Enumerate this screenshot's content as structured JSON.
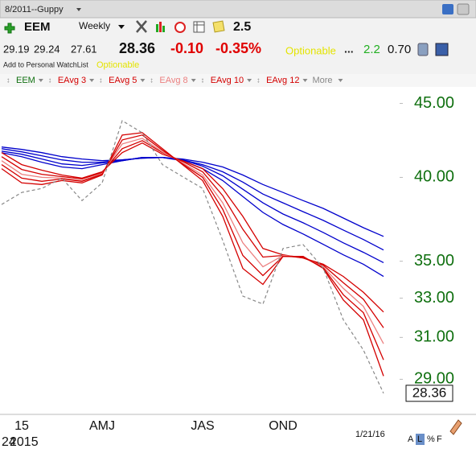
{
  "header": {
    "layout_name": "8/2011--Guppy",
    "symbol": "EEM",
    "period": "Weekly",
    "zoom": "2.5",
    "open": "29.19",
    "high": "29.24",
    "low": "27.61",
    "last": "28.36",
    "change": "-0.10",
    "change_pct": "-0.35%",
    "optionable": "Optionable",
    "ellipsis": "...",
    "rank": "2.2",
    "ratio": "0.70",
    "watchlist": "Add to Personal WatchList",
    "optionable_tag": "Optionable",
    "more": "More"
  },
  "footer": {
    "year_label": "2015",
    "day_label": "24",
    "date": "1/21/16",
    "buttons": [
      "A",
      "L",
      "%",
      "F"
    ]
  },
  "chart_data": {
    "type": "line",
    "log_scale": true,
    "categories": [
      null,
      "15",
      null,
      null,
      null,
      "AMJ",
      null,
      null,
      null,
      null,
      "JAS",
      null,
      null,
      null,
      "OND",
      null,
      null,
      null,
      null,
      null
    ],
    "ylim": [
      27.6,
      46.2
    ],
    "yticks": [
      {
        "value": 45,
        "label": "45.00"
      },
      {
        "value": 40,
        "label": "40.00"
      },
      {
        "value": 35,
        "label": "35.00"
      },
      {
        "value": 33,
        "label": "33.00"
      },
      {
        "value": 31,
        "label": "31.00"
      },
      {
        "value": 29,
        "label": "29.00"
      }
    ],
    "series": [
      {
        "name": "EEM",
        "color": "#888888",
        "dashed": true,
        "values": [
          38.31,
          39.05,
          39.3,
          39.95,
          38.55,
          39.65,
          43.78,
          42.94,
          40.82,
          40.05,
          39.3,
          36.18,
          33.11,
          32.69,
          35.72,
          35.94,
          34.62,
          31.88,
          30.38,
          28.36
        ]
      },
      {
        "name": "EAvg 3",
        "color": "#d40000",
        "values": [
          40.56,
          39.65,
          39.55,
          39.8,
          39.65,
          40.15,
          42.79,
          42.95,
          41.87,
          40.82,
          39.8,
          37.59,
          34.6,
          33.73,
          35.27,
          35.27,
          34.6,
          32.9,
          31.88,
          29.15
        ]
      },
      {
        "name": "EAvg 5",
        "color": "#d40000",
        "values": [
          40.82,
          39.95,
          39.75,
          39.9,
          39.75,
          40.2,
          42.46,
          42.79,
          41.77,
          40.87,
          40.0,
          38.02,
          35.32,
          34.21,
          35.27,
          35.23,
          34.64,
          33.18,
          32.24,
          29.91
        ]
      },
      {
        "name": "EAvg 8",
        "color": "#ec8080",
        "values": [
          41.08,
          40.2,
          40.0,
          39.95,
          39.8,
          40.25,
          42.19,
          42.57,
          41.66,
          40.93,
          40.15,
          38.41,
          36.04,
          34.69,
          35.32,
          35.23,
          34.69,
          33.52,
          32.57,
          30.69
        ]
      },
      {
        "name": "EAvg 10",
        "color": "#d40000",
        "values": [
          41.34,
          40.51,
          40.2,
          40.05,
          39.9,
          40.31,
          41.87,
          42.41,
          41.61,
          41.03,
          40.36,
          38.85,
          36.83,
          35.23,
          35.32,
          35.18,
          34.78,
          33.82,
          32.94,
          31.48
        ]
      },
      {
        "name": "EAvg 12",
        "color": "#d40000",
        "values": [
          41.61,
          40.82,
          40.46,
          40.15,
          39.95,
          40.36,
          41.61,
          42.25,
          41.5,
          41.08,
          40.56,
          39.29,
          37.59,
          35.72,
          35.36,
          35.18,
          34.83,
          34.16,
          33.31,
          32.28
        ]
      },
      {
        "color": "#0000cc",
        "values": [
          41.61,
          41.34,
          40.98,
          40.67,
          40.56,
          40.82,
          41.08,
          41.29,
          41.29,
          41.08,
          40.56,
          39.8,
          38.8,
          37.83,
          37.11,
          36.55,
          35.95,
          35.36,
          34.83,
          34.16
        ]
      },
      {
        "color": "#0000cc",
        "values": [
          41.71,
          41.5,
          41.19,
          40.87,
          40.77,
          40.93,
          41.08,
          41.29,
          41.29,
          41.13,
          40.72,
          40.1,
          39.25,
          38.41,
          37.73,
          37.21,
          36.64,
          36.04,
          35.5,
          34.92
        ]
      },
      {
        "color": "#0000cc",
        "values": [
          41.87,
          41.66,
          41.4,
          41.13,
          40.98,
          40.98,
          41.13,
          41.24,
          41.29,
          41.13,
          40.82,
          40.36,
          39.7,
          38.95,
          38.41,
          37.87,
          37.35,
          36.78,
          36.23,
          35.63
        ]
      },
      {
        "color": "#0000cc",
        "values": [
          41.98,
          41.82,
          41.61,
          41.34,
          41.19,
          41.08,
          41.13,
          41.24,
          41.29,
          41.19,
          40.98,
          40.67,
          40.15,
          39.55,
          39.05,
          38.55,
          38.07,
          37.49,
          36.92,
          36.41
        ]
      }
    ],
    "axis_label_color": "#107010"
  }
}
